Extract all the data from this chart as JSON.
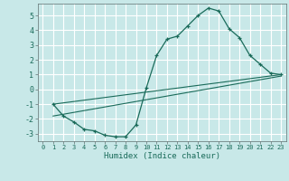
{
  "xlabel": "Humidex (Indice chaleur)",
  "bg_color": "#c8e8e8",
  "grid_color": "#ffffff",
  "line_color": "#1a6b5a",
  "xlim": [
    -0.5,
    23.5
  ],
  "ylim": [
    -3.5,
    5.8
  ],
  "yticks": [
    -3,
    -2,
    -1,
    0,
    1,
    2,
    3,
    4,
    5
  ],
  "xticks": [
    0,
    1,
    2,
    3,
    4,
    5,
    6,
    7,
    8,
    9,
    10,
    11,
    12,
    13,
    14,
    15,
    16,
    17,
    18,
    19,
    20,
    21,
    22,
    23
  ],
  "curve_x": [
    1,
    2,
    3,
    4,
    5,
    6,
    7,
    8,
    9,
    10,
    11,
    12,
    13,
    14,
    15,
    16,
    17,
    18,
    19,
    20,
    21,
    22,
    23
  ],
  "curve_y": [
    -1.0,
    -1.8,
    -2.2,
    -2.7,
    -2.8,
    -3.1,
    -3.2,
    -3.2,
    -2.4,
    0.1,
    2.3,
    3.4,
    3.6,
    4.3,
    5.0,
    5.5,
    5.3,
    4.1,
    3.5,
    2.3,
    1.7,
    1.1,
    1.0
  ],
  "line1_x": [
    1,
    23
  ],
  "line1_y": [
    -1.0,
    1.0
  ],
  "line2_x": [
    1,
    23
  ],
  "line2_y": [
    -1.8,
    0.9
  ]
}
